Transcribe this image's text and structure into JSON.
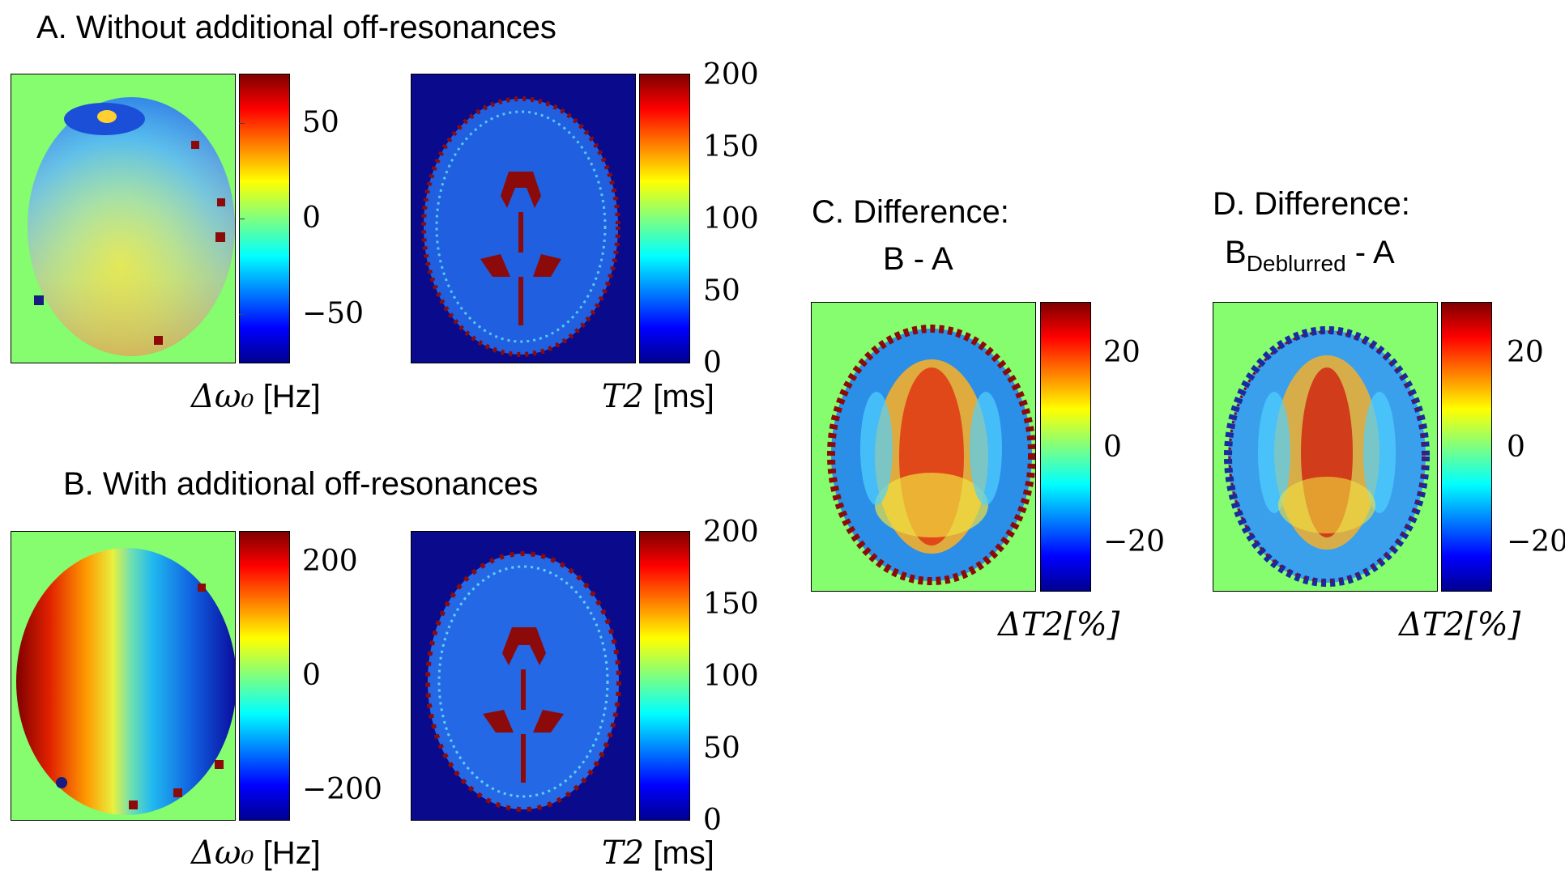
{
  "panels": {
    "A": {
      "title": "A. Without additional off-resonances",
      "offres_ticks": [
        "50",
        "0",
        "−50"
      ],
      "offres_unit_symbol": "Δω₀",
      "offres_unit": "[Hz]",
      "t2_ticks": [
        "200",
        "150",
        "100",
        "50",
        "0"
      ],
      "t2_unit_symbol": "T2",
      "t2_unit": "[ms]"
    },
    "B": {
      "title": "B. With additional off-resonances",
      "offres_ticks": [
        "200",
        "0",
        "−200"
      ],
      "offres_unit_symbol": "Δω₀",
      "offres_unit": "[Hz]",
      "t2_ticks": [
        "200",
        "150",
        "100",
        "50",
        "0"
      ],
      "t2_unit_symbol": "T2",
      "t2_unit": "[ms]"
    },
    "C": {
      "title_line1": "C. Difference:",
      "title_line2": "B - A",
      "ticks": [
        "20",
        "0",
        "−20"
      ],
      "unit": "ΔT2[%]"
    },
    "D": {
      "title_line1": "D. Difference:",
      "title_line2_main": "B",
      "title_line2_sub": "Deblurred",
      "title_line2_rest": " - A",
      "ticks": [
        "20",
        "0",
        "−20"
      ],
      "unit": "ΔT2[%]"
    }
  },
  "colors": {
    "background_green": "#86fd6e",
    "background_navy": "#0a0a8c",
    "csf_red": "#8c0a0a"
  }
}
